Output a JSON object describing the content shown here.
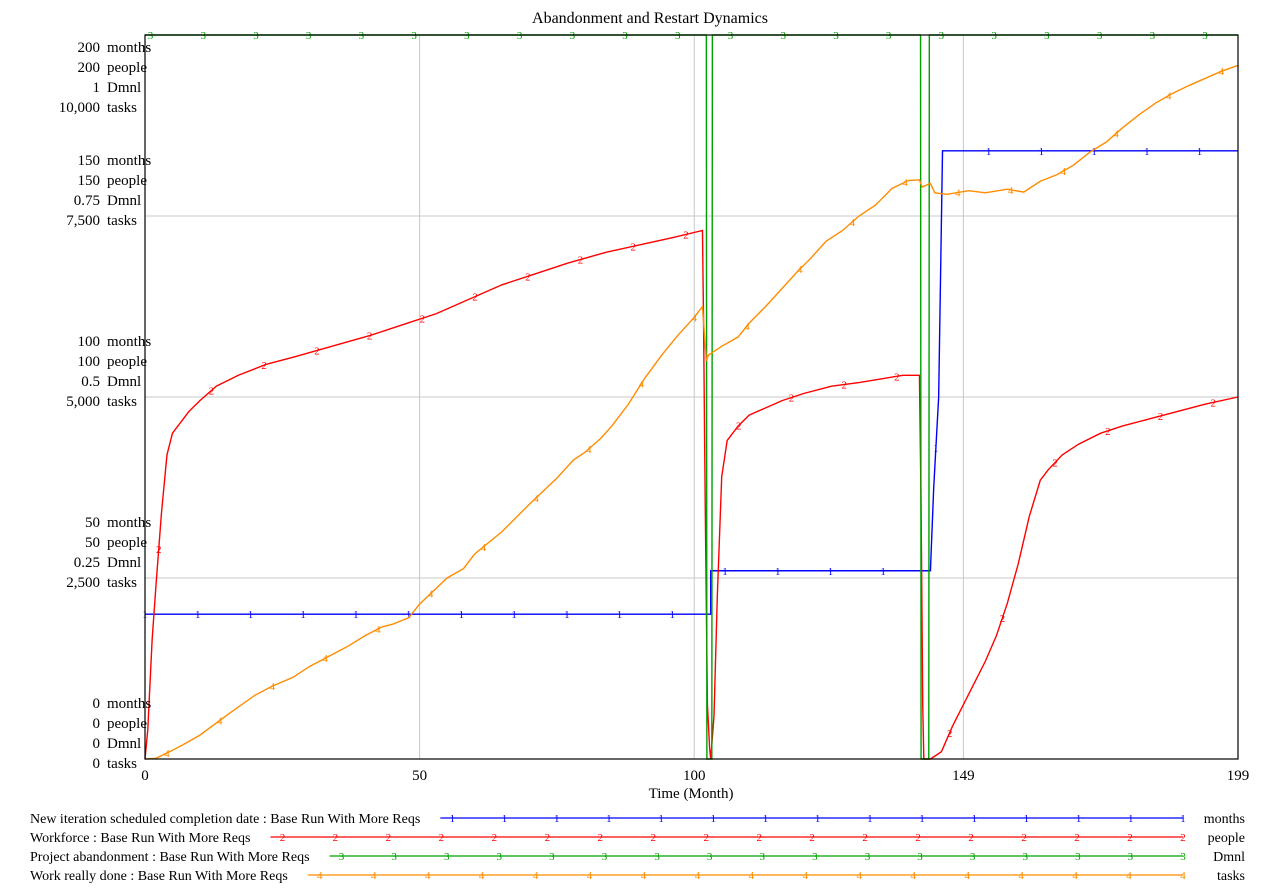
{
  "chart_data": {
    "type": "line",
    "title": "Abandonment and Restart Dynamics",
    "xlabel": "Time (Month)",
    "xlim": [
      0,
      199
    ],
    "x_tick_labels": [
      "0",
      "50",
      "100",
      "149",
      "199"
    ],
    "x_tick_values": [
      0,
      50,
      100,
      149,
      199
    ],
    "grid": true,
    "legend_placement": "bottom",
    "y_tick_groups": [
      {
        "value_fraction": 1.0,
        "labels": [
          {
            "num": "200",
            "unit": "months"
          },
          {
            "num": "200",
            "unit": "people"
          },
          {
            "num": "1",
            "unit": "Dmnl"
          },
          {
            "num": "10,000",
            "unit": "tasks"
          }
        ]
      },
      {
        "value_fraction": 0.75,
        "labels": [
          {
            "num": "150",
            "unit": "months"
          },
          {
            "num": "150",
            "unit": "people"
          },
          {
            "num": "0.75",
            "unit": "Dmnl"
          },
          {
            "num": "7,500",
            "unit": "tasks"
          }
        ]
      },
      {
        "value_fraction": 0.5,
        "labels": [
          {
            "num": "100",
            "unit": "months"
          },
          {
            "num": "100",
            "unit": "people"
          },
          {
            "num": "0.5",
            "unit": "Dmnl"
          },
          {
            "num": "5,000",
            "unit": "tasks"
          }
        ]
      },
      {
        "value_fraction": 0.25,
        "labels": [
          {
            "num": "50",
            "unit": "months"
          },
          {
            "num": "50",
            "unit": "people"
          },
          {
            "num": "0.25",
            "unit": "Dmnl"
          },
          {
            "num": "2,500",
            "unit": "tasks"
          }
        ]
      },
      {
        "value_fraction": 0.0,
        "labels": [
          {
            "num": "0",
            "unit": "months"
          },
          {
            "num": "0",
            "unit": "people"
          },
          {
            "num": "0",
            "unit": "Dmnl"
          },
          {
            "num": "0",
            "unit": "tasks"
          }
        ]
      }
    ],
    "series": [
      {
        "name": "New iteration scheduled completion date : Base Run With More Reqs",
        "unit": "months",
        "marker": "1",
        "color": "#0000ff",
        "ymax": 200,
        "points": [
          [
            0,
            40
          ],
          [
            103,
            40
          ],
          [
            103,
            52
          ],
          [
            143,
            52
          ],
          [
            143.6,
            75
          ],
          [
            144.5,
            100
          ],
          [
            145.2,
            168
          ],
          [
            199,
            168
          ]
        ]
      },
      {
        "name": "Workforce : Base Run With More Reqs",
        "unit": "people",
        "marker": "2",
        "color": "#ff0000",
        "ymax": 200,
        "points": [
          [
            0,
            0
          ],
          [
            0.5,
            8
          ],
          [
            1.3,
            33
          ],
          [
            2,
            48
          ],
          [
            3,
            68
          ],
          [
            4,
            84
          ],
          [
            5,
            90
          ],
          [
            6,
            92
          ],
          [
            7,
            94
          ],
          [
            8,
            96
          ],
          [
            10,
            99
          ],
          [
            13,
            103
          ],
          [
            17,
            106
          ],
          [
            22,
            109
          ],
          [
            27,
            111
          ],
          [
            34,
            114
          ],
          [
            41,
            117
          ],
          [
            47,
            120
          ],
          [
            53,
            123
          ],
          [
            59,
            127
          ],
          [
            65,
            131
          ],
          [
            71,
            134
          ],
          [
            77,
            137
          ],
          [
            84,
            140
          ],
          [
            90,
            142
          ],
          [
            96,
            144
          ],
          [
            101.5,
            146
          ],
          [
            101.7,
            120
          ],
          [
            102,
            70
          ],
          [
            102.4,
            15
          ],
          [
            102.8,
            3
          ],
          [
            103,
            0
          ],
          [
            103.6,
            12
          ],
          [
            104.2,
            45
          ],
          [
            105,
            78
          ],
          [
            106,
            88
          ],
          [
            108,
            92
          ],
          [
            110,
            95
          ],
          [
            113,
            97
          ],
          [
            116,
            99
          ],
          [
            120,
            101
          ],
          [
            125,
            103
          ],
          [
            130,
            104
          ],
          [
            134,
            105
          ],
          [
            138,
            106
          ],
          [
            141,
            106
          ],
          [
            141.3,
            70
          ],
          [
            141.6,
            15
          ],
          [
            141.8,
            0
          ],
          [
            142,
            0
          ],
          [
            143,
            0
          ],
          [
            145,
            2
          ],
          [
            147,
            9
          ],
          [
            149,
            15
          ],
          [
            151,
            21
          ],
          [
            153,
            27
          ],
          [
            155,
            34
          ],
          [
            157,
            43
          ],
          [
            159,
            54
          ],
          [
            161,
            67
          ],
          [
            163,
            77
          ],
          [
            164.5,
            80
          ],
          [
            167,
            84
          ],
          [
            170,
            87
          ],
          [
            174,
            90
          ],
          [
            178,
            92
          ],
          [
            183,
            94
          ],
          [
            188,
            96
          ],
          [
            193,
            98
          ],
          [
            199,
            100
          ]
        ]
      },
      {
        "name": "Project abandonment : Base Run With More Reqs",
        "unit": "Dmnl",
        "marker": "3",
        "color": "#00a000",
        "ymax": 1,
        "points": [
          [
            0,
            1
          ],
          [
            102.2,
            1
          ],
          [
            102.3,
            0
          ],
          [
            103.2,
            0
          ],
          [
            103.3,
            1
          ],
          [
            141.2,
            1
          ],
          [
            141.3,
            0
          ],
          [
            142.7,
            0
          ],
          [
            142.8,
            1
          ],
          [
            199,
            1
          ]
        ]
      },
      {
        "name": "Work really done : Base Run With More Reqs",
        "unit": "tasks",
        "marker": "4",
        "color": "#ff8c00",
        "ymax": 10000,
        "points": [
          [
            0,
            0
          ],
          [
            2,
            10
          ],
          [
            5,
            120
          ],
          [
            7,
            200
          ],
          [
            10,
            330
          ],
          [
            15,
            610
          ],
          [
            20,
            880
          ],
          [
            23,
            1000
          ],
          [
            27,
            1130
          ],
          [
            30,
            1280
          ],
          [
            35,
            1480
          ],
          [
            37,
            1560
          ],
          [
            40,
            1700
          ],
          [
            43,
            1820
          ],
          [
            45,
            1860
          ],
          [
            48,
            1950
          ],
          [
            50,
            2140
          ],
          [
            55,
            2500
          ],
          [
            58,
            2630
          ],
          [
            60,
            2830
          ],
          [
            65,
            3140
          ],
          [
            70,
            3520
          ],
          [
            75,
            3880
          ],
          [
            78,
            4130
          ],
          [
            80,
            4230
          ],
          [
            83,
            4430
          ],
          [
            85,
            4600
          ],
          [
            88,
            4900
          ],
          [
            91,
            5260
          ],
          [
            94,
            5570
          ],
          [
            97,
            5850
          ],
          [
            100,
            6100
          ],
          [
            101.5,
            6250
          ],
          [
            102.2,
            5500
          ],
          [
            102.6,
            5580
          ],
          [
            103,
            5600
          ],
          [
            105,
            5700
          ],
          [
            108,
            5830
          ],
          [
            110,
            6020
          ],
          [
            113,
            6250
          ],
          [
            116,
            6500
          ],
          [
            119,
            6750
          ],
          [
            121,
            6900
          ],
          [
            124,
            7150
          ],
          [
            127,
            7300
          ],
          [
            130,
            7500
          ],
          [
            133,
            7650
          ],
          [
            136,
            7880
          ],
          [
            139,
            7990
          ],
          [
            141,
            8000
          ],
          [
            141.5,
            7900
          ],
          [
            143,
            7950
          ],
          [
            143.8,
            7820
          ],
          [
            146,
            7800
          ],
          [
            150,
            7850
          ],
          [
            153,
            7820
          ],
          [
            157,
            7870
          ],
          [
            160,
            7830
          ],
          [
            163,
            7980
          ],
          [
            166,
            8070
          ],
          [
            169,
            8200
          ],
          [
            172,
            8380
          ],
          [
            175,
            8520
          ],
          [
            178,
            8720
          ],
          [
            181,
            8900
          ],
          [
            184,
            9060
          ],
          [
            187,
            9190
          ],
          [
            190,
            9300
          ],
          [
            193,
            9400
          ],
          [
            196,
            9500
          ],
          [
            199,
            9580
          ]
        ]
      }
    ]
  }
}
